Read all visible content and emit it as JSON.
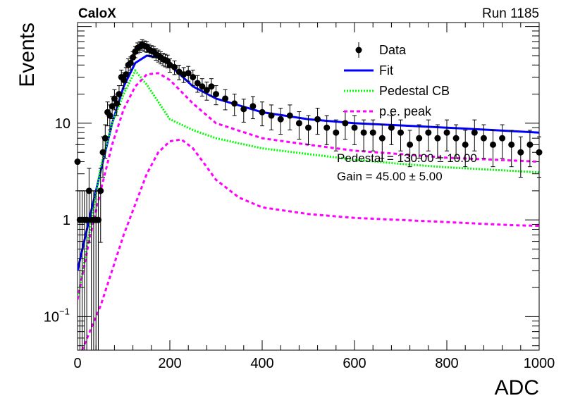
{
  "header": {
    "left": "CaloX",
    "right": "Run 1185"
  },
  "chart_data": {
    "type": "scatter",
    "title": "",
    "xlabel": "ADC",
    "ylabel": "Events",
    "xlim": [
      0,
      1000
    ],
    "ylim": [
      0.045,
      110
    ],
    "y_scale": "log",
    "grid": false,
    "legend_position": "top-right",
    "x_ticks": [
      "0",
      "200",
      "400",
      "600",
      "800",
      "1000"
    ],
    "y_ticks": [
      {
        "value": 0.1,
        "base": "10",
        "exp": "−1"
      },
      {
        "value": 1,
        "label": "1"
      },
      {
        "value": 10,
        "label": "10"
      }
    ],
    "legend": [
      {
        "label": "Data",
        "color": "#000000",
        "style": "marker"
      },
      {
        "label": "Fit",
        "color": "#0000ff",
        "style": "solid"
      },
      {
        "label": "Pedestal CB",
        "color": "#00ff00",
        "style": "dotted"
      },
      {
        "label": "p.e. peak",
        "color": "#ff00ff",
        "style": "dashed"
      }
    ],
    "stats": [
      "Pedestal = 130.00 ± 10.00",
      "Gain = 45.00 ± 5.00"
    ],
    "series": [
      {
        "name": "Fit",
        "color": "#0000ff",
        "style": "solid",
        "x": [
          0,
          25,
          50,
          75,
          100,
          125,
          150,
          175,
          200,
          250,
          300,
          400,
          500,
          600,
          700,
          800,
          900,
          1000
        ],
        "y": [
          0.3,
          1.0,
          3.2,
          10,
          24,
          42,
          50,
          48,
          40,
          24,
          18,
          13,
          11,
          10,
          9.5,
          9,
          8.5,
          8
        ]
      },
      {
        "name": "Pedestal CB",
        "color": "#00ff00",
        "style": "dotted",
        "x": [
          0,
          25,
          50,
          75,
          100,
          125,
          150,
          200,
          250,
          300,
          400,
          500,
          600,
          700,
          800,
          900,
          1000
        ],
        "y": [
          0.15,
          0.7,
          3.5,
          10,
          20,
          35,
          25,
          11,
          8.5,
          7,
          5.5,
          4.8,
          4.2,
          3.8,
          3.5,
          3.3,
          3.1
        ]
      },
      {
        "name": "p.e. peak",
        "color": "#ff00ff",
        "style": "dashed",
        "x": [
          0,
          25,
          50,
          75,
          100,
          125,
          150,
          175,
          200,
          250,
          300,
          400,
          500,
          600,
          700,
          800,
          900,
          1000
        ],
        "y": [
          0.15,
          0.6,
          2.0,
          6,
          14,
          24,
          32,
          33,
          28,
          16,
          10,
          7,
          6,
          5.2,
          4.8,
          4.4,
          4.2,
          4.0
        ]
      },
      {
        "name": "p.e. peak 2",
        "color": "#ff00ff",
        "style": "dashed",
        "x": [
          10,
          50,
          100,
          150,
          175,
          200,
          225,
          250,
          275,
          300,
          350,
          400,
          500,
          600,
          700,
          800,
          900,
          950,
          1000
        ],
        "y": [
          0.045,
          0.13,
          0.7,
          3.0,
          5.0,
          6.5,
          6.8,
          5.5,
          3.8,
          2.6,
          1.7,
          1.35,
          1.15,
          1.05,
          1.0,
          0.95,
          0.9,
          0.88,
          0.87
        ]
      }
    ],
    "data_points": {
      "name": "Data",
      "x": [
        0,
        5,
        10,
        15,
        20,
        25,
        30,
        35,
        40,
        45,
        50,
        55,
        60,
        65,
        70,
        75,
        80,
        85,
        90,
        95,
        100,
        105,
        110,
        115,
        120,
        125,
        130,
        135,
        140,
        145,
        150,
        155,
        160,
        165,
        170,
        175,
        180,
        185,
        190,
        195,
        200,
        210,
        220,
        230,
        240,
        250,
        260,
        270,
        280,
        290,
        300,
        320,
        340,
        360,
        380,
        400,
        420,
        440,
        460,
        480,
        500,
        520,
        540,
        560,
        580,
        600,
        620,
        640,
        660,
        680,
        700,
        720,
        740,
        760,
        780,
        800,
        820,
        840,
        860,
        880,
        900,
        920,
        940,
        960,
        980,
        1000
      ],
      "y": [
        4,
        1,
        1,
        1,
        1,
        2,
        1,
        1,
        1,
        1,
        2,
        5,
        7,
        13,
        12,
        15,
        18,
        16,
        20,
        30,
        28,
        32,
        40,
        42,
        48,
        55,
        60,
        62,
        65,
        63,
        62,
        58,
        56,
        55,
        52,
        50,
        48,
        46,
        45,
        44,
        40,
        38,
        34,
        32,
        33,
        30,
        26,
        24,
        22,
        24,
        20,
        18,
        16,
        14,
        15,
        13,
        12,
        11,
        12,
        10,
        9,
        11,
        9,
        8,
        10,
        9,
        8,
        8,
        7,
        9,
        8,
        6,
        7,
        8,
        7,
        8,
        7,
        6,
        8,
        7,
        6,
        7,
        6,
        5,
        6,
        5
      ]
    }
  }
}
